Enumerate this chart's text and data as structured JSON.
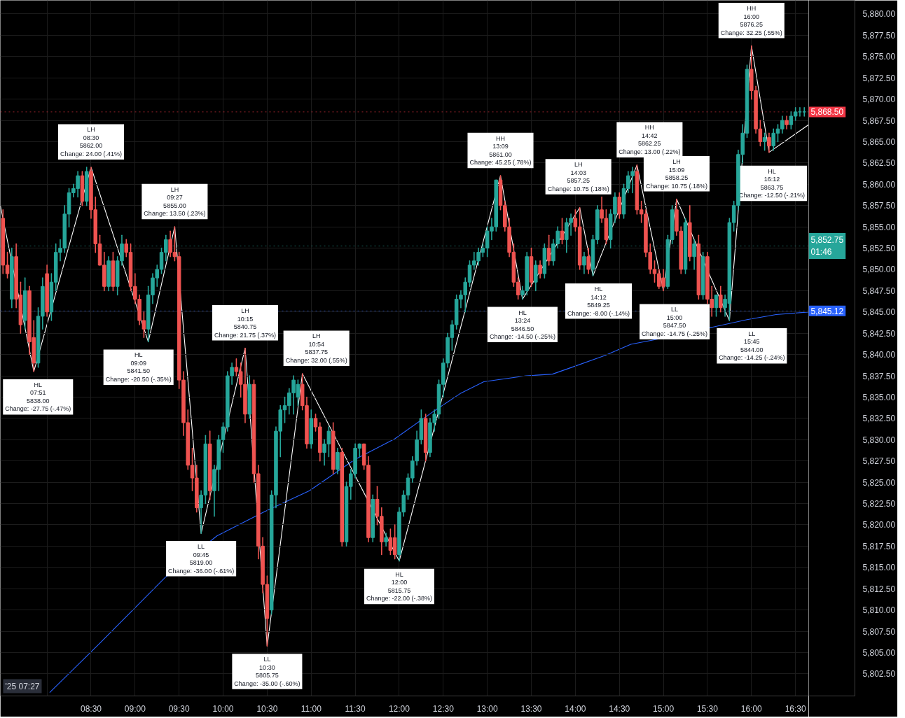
{
  "chart_data": {
    "type": "candlestick",
    "grid": true,
    "xlim": [
      7.47,
      16.65
    ],
    "ylim": [
      5799.9,
      5881.6
    ],
    "xticks": [
      {
        "value": 8,
        "label": null
      },
      {
        "value": 8.5,
        "label": "08:30"
      },
      {
        "value": 9,
        "label": "09:00"
      },
      {
        "value": 9.5,
        "label": "09:30"
      },
      {
        "value": 10,
        "label": "10:00"
      },
      {
        "value": 10.5,
        "label": "10:30"
      },
      {
        "value": 11,
        "label": "11:00"
      },
      {
        "value": 11.5,
        "label": "11:30"
      },
      {
        "value": 12,
        "label": "12:00"
      },
      {
        "value": 12.5,
        "label": "12:30"
      },
      {
        "value": 13,
        "label": "13:00"
      },
      {
        "value": 13.5,
        "label": "13:30"
      },
      {
        "value": 14,
        "label": "14:00"
      },
      {
        "value": 14.5,
        "label": "14:30"
      },
      {
        "value": 15,
        "label": "15:00"
      },
      {
        "value": 15.5,
        "label": "15:30"
      },
      {
        "value": 16,
        "label": "16:00"
      },
      {
        "value": 16.5,
        "label": "16:30"
      }
    ],
    "yticks": [
      {
        "value": 5802.5,
        "label": "5,802.50"
      },
      {
        "value": 5805,
        "label": "5,805.00"
      },
      {
        "value": 5807.5,
        "label": "5,807.50"
      },
      {
        "value": 5810,
        "label": "5,810.00"
      },
      {
        "value": 5812.5,
        "label": "5,812.50"
      },
      {
        "value": 5815,
        "label": "5,815.00"
      },
      {
        "value": 5817.5,
        "label": "5,817.50"
      },
      {
        "value": 5820,
        "label": "5,820.00"
      },
      {
        "value": 5822.5,
        "label": "5,822.50"
      },
      {
        "value": 5825,
        "label": "5,825.00"
      },
      {
        "value": 5827.5,
        "label": "5,827.50"
      },
      {
        "value": 5830,
        "label": "5,830.00"
      },
      {
        "value": 5832.5,
        "label": "5,832.50"
      },
      {
        "value": 5835,
        "label": "5,835.00"
      },
      {
        "value": 5837.5,
        "label": "5,837.50"
      },
      {
        "value": 5840,
        "label": "5,840.00"
      },
      {
        "value": 5842.5,
        "label": "5,842.50"
      },
      {
        "value": 5845,
        "label": "5,845.00"
      },
      {
        "value": 5847.5,
        "label": "5,847.50"
      },
      {
        "value": 5850,
        "label": "5,850.00"
      },
      {
        "value": 5852.5,
        "label": "5,852.50"
      },
      {
        "value": 5855,
        "label": "5,855.00"
      },
      {
        "value": 5857.5,
        "label": "5,857.50"
      },
      {
        "value": 5860,
        "label": "5,860.00"
      },
      {
        "value": 5862.5,
        "label": "5,862.50"
      },
      {
        "value": 5865,
        "label": "5,865.00"
      },
      {
        "value": 5867.5,
        "label": "5,867.50"
      },
      {
        "value": 5870,
        "label": "5,870.00"
      },
      {
        "value": 5872.5,
        "label": "5,872.50"
      },
      {
        "value": 5875,
        "label": "5,875.00"
      },
      {
        "value": 5877.5,
        "label": "5,877.50"
      },
      {
        "value": 5880,
        "label": "5,880.00"
      }
    ],
    "x": [
      7.5,
      7.55,
      7.6,
      7.65,
      7.7,
      7.75,
      7.8,
      7.85,
      7.9,
      7.95,
      8.0,
      8.05,
      8.1,
      8.15,
      8.2,
      8.25,
      8.3,
      8.35,
      8.4,
      8.45,
      8.5,
      8.55,
      8.6,
      8.65,
      8.7,
      8.75,
      8.8,
      8.85,
      8.9,
      8.95,
      9.0,
      9.05,
      9.1,
      9.15,
      9.2,
      9.25,
      9.3,
      9.35,
      9.4,
      9.45,
      9.5,
      9.55,
      9.6,
      9.65,
      9.7,
      9.75,
      9.8,
      9.85,
      9.9,
      9.95,
      10.0,
      10.05,
      10.1,
      10.15,
      10.2,
      10.25,
      10.3,
      10.35,
      10.4,
      10.45,
      10.5,
      10.55,
      10.6,
      10.65,
      10.7,
      10.75,
      10.8,
      10.85,
      10.9,
      10.95,
      11.0,
      11.05,
      11.1,
      11.15,
      11.2,
      11.25,
      11.3,
      11.35,
      11.4,
      11.45,
      11.5,
      11.55,
      11.6,
      11.65,
      11.7,
      11.75,
      11.8,
      11.85,
      11.9,
      11.95,
      12.0,
      12.05,
      12.1,
      12.15,
      12.2,
      12.25,
      12.3,
      12.35,
      12.4,
      12.45,
      12.5,
      12.55,
      12.6,
      12.65,
      12.7,
      12.75,
      12.8,
      12.85,
      12.9,
      12.95,
      13.0,
      13.05,
      13.1,
      13.15,
      13.2,
      13.25,
      13.3,
      13.35,
      13.4,
      13.45,
      13.5,
      13.55,
      13.6,
      13.65,
      13.7,
      13.75,
      13.8,
      13.85,
      13.9,
      13.95,
      14.0,
      14.05,
      14.1,
      14.15,
      14.2,
      14.25,
      14.3,
      14.35,
      14.4,
      14.45,
      14.5,
      14.55,
      14.6,
      14.65,
      14.7,
      14.75,
      14.8,
      14.85,
      14.9,
      14.95,
      15.0,
      15.05,
      15.1,
      15.15,
      15.2,
      15.25,
      15.3,
      15.35,
      15.4,
      15.45,
      15.5,
      15.55,
      15.6,
      15.65,
      15.7,
      15.75,
      15.8,
      15.85,
      15.9,
      15.95,
      16.0,
      16.05,
      16.1,
      16.15,
      16.2,
      16.25,
      16.3,
      16.35,
      16.4,
      16.45,
      16.5,
      16.55,
      16.6
    ],
    "ohlc": [
      [
        5856,
        5857,
        5849.5,
        5850.5
      ],
      [
        5850.5,
        5852,
        5849,
        5849.5
      ],
      [
        5846.5,
        5852.5,
        5845.5,
        5851.5
      ],
      [
        5851.5,
        5853,
        5845.5,
        5846.5
      ],
      [
        5847,
        5848.5,
        5842.5,
        5843.5
      ],
      [
        5844,
        5849,
        5843,
        5847.5
      ],
      [
        5847.5,
        5848,
        5840,
        5841.5
      ],
      [
        5842,
        5844,
        5838,
        5839
      ],
      [
        5839,
        5845.5,
        5838.5,
        5844.5
      ],
      [
        5844.5,
        5849,
        5843,
        5848
      ],
      [
        5849.5,
        5850.5,
        5844.5,
        5845
      ],
      [
        5845,
        5849.5,
        5844,
        5848.5
      ],
      [
        5848.5,
        5853,
        5847.5,
        5852
      ],
      [
        5852,
        5853.5,
        5851,
        5852.5
      ],
      [
        5852.5,
        5857.5,
        5852,
        5856.5
      ],
      [
        5856.5,
        5859.5,
        5855,
        5859
      ],
      [
        5859,
        5860,
        5858.5,
        5859.5
      ],
      [
        5859.5,
        5861.5,
        5858.5,
        5861
      ],
      [
        5861,
        5861.5,
        5857.5,
        5858
      ],
      [
        5858,
        5862,
        5857.5,
        5861.5
      ],
      [
        5861.5,
        5862,
        5856,
        5857
      ],
      [
        5857,
        5858.5,
        5852,
        5853
      ],
      [
        5853,
        5854,
        5850.5,
        5850.5
      ],
      [
        5850.5,
        5852,
        5847.5,
        5848
      ],
      [
        5848,
        5851.5,
        5847.5,
        5851
      ],
      [
        5851,
        5852,
        5847.5,
        5848
      ],
      [
        5848,
        5851.5,
        5847,
        5851
      ],
      [
        5851,
        5854,
        5850.5,
        5853
      ],
      [
        5853,
        5853.5,
        5851.5,
        5852
      ],
      [
        5852,
        5853,
        5847.5,
        5848
      ],
      [
        5848,
        5849.5,
        5846,
        5846.5
      ],
      [
        5846.5,
        5847,
        5843.5,
        5844
      ],
      [
        5844,
        5845,
        5842,
        5843
      ],
      [
        5843,
        5848,
        5841.5,
        5847
      ],
      [
        5847,
        5849.5,
        5846,
        5849
      ],
      [
        5849,
        5850.5,
        5848,
        5850
      ],
      [
        5850,
        5852.5,
        5849.5,
        5852
      ],
      [
        5852,
        5854,
        5851,
        5853.5
      ],
      [
        5853.5,
        5854.5,
        5851.5,
        5852
      ],
      [
        5852,
        5855,
        5851,
        5851.5
      ],
      [
        5851.5,
        5852,
        5836,
        5837
      ],
      [
        5837,
        5838,
        5830.5,
        5832
      ],
      [
        5832,
        5833.5,
        5826.5,
        5827
      ],
      [
        5827,
        5829,
        5824,
        5825.5
      ],
      [
        5825.5,
        5827,
        5821.5,
        5822
      ],
      [
        5822,
        5824,
        5819,
        5823.5
      ],
      [
        5823.5,
        5830.5,
        5822.5,
        5829.5
      ],
      [
        5829.5,
        5831,
        5823,
        5824
      ],
      [
        5824,
        5827,
        5821,
        5826.5
      ],
      [
        5826.5,
        5830.5,
        5824,
        5830
      ],
      [
        5830,
        5832,
        5828.5,
        5831.5
      ],
      [
        5831.5,
        5838,
        5831,
        5837.5
      ],
      [
        5837.5,
        5839,
        5836.5,
        5838.5
      ],
      [
        5838.5,
        5839.5,
        5837.5,
        5838
      ],
      [
        5838,
        5839,
        5835,
        5836.5
      ],
      [
        5836.5,
        5840.75,
        5832,
        5833
      ],
      [
        5833,
        5837.5,
        5832.5,
        5836.5
      ],
      [
        5836.5,
        5837,
        5825,
        5826
      ],
      [
        5826,
        5827,
        5816,
        5817.5
      ],
      [
        5817.5,
        5818.5,
        5812,
        5813
      ],
      [
        5813,
        5814,
        5805.75,
        5809
      ],
      [
        5810,
        5824,
        5809.5,
        5823.5
      ],
      [
        5823.5,
        5831.5,
        5822,
        5831
      ],
      [
        5831,
        5834,
        5828,
        5833.5
      ],
      [
        5833.5,
        5835,
        5832,
        5834
      ],
      [
        5834,
        5836,
        5833,
        5835.5
      ],
      [
        5835.5,
        5837.5,
        5833,
        5837
      ],
      [
        5835,
        5837,
        5834,
        5836.5
      ],
      [
        5836.5,
        5837.75,
        5833.5,
        5834
      ],
      [
        5834,
        5835,
        5829,
        5829.5
      ],
      [
        5829.5,
        5833.5,
        5829,
        5832.5
      ],
      [
        5832.5,
        5833,
        5831,
        5831.5
      ],
      [
        5831.5,
        5832,
        5827.5,
        5828.5
      ],
      [
        5828.5,
        5830,
        5827,
        5829.5
      ],
      [
        5829.5,
        5831.5,
        5828,
        5831
      ],
      [
        5831,
        5832,
        5826,
        5826.5
      ],
      [
        5826.5,
        5829,
        5826,
        5828.5
      ],
      [
        5828.5,
        5829,
        5817.5,
        5818
      ],
      [
        5818,
        5825,
        5817.5,
        5824.5
      ],
      [
        5824.5,
        5826.5,
        5823,
        5826
      ],
      [
        5826,
        5829.5,
        5825.5,
        5829
      ],
      [
        5829,
        5829.5,
        5828,
        5829.5
      ],
      [
        5829.5,
        5829.5,
        5826.5,
        5827
      ],
      [
        5827,
        5828,
        5818,
        5818.5
      ],
      [
        5818.5,
        5823.5,
        5818,
        5823
      ],
      [
        5823,
        5824.5,
        5820,
        5821
      ],
      [
        5821,
        5822,
        5816.5,
        5818
      ],
      [
        5818,
        5819,
        5817.5,
        5818.5
      ],
      [
        5818.5,
        5819.5,
        5816.5,
        5817
      ],
      [
        5818.5,
        5820,
        5816,
        5816.5
      ],
      [
        5816.5,
        5822,
        5815.75,
        5821.5
      ],
      [
        5821.5,
        5824,
        5821,
        5823.5
      ],
      [
        5823.5,
        5826,
        5823,
        5825.5
      ],
      [
        5825.5,
        5828,
        5825,
        5827.5
      ],
      [
        5827.5,
        5831,
        5827,
        5830
      ],
      [
        5830,
        5833.5,
        5829.5,
        5832.5
      ],
      [
        5832.5,
        5833,
        5827.5,
        5828.5
      ],
      [
        5828.5,
        5832.5,
        5828,
        5832
      ],
      [
        5832,
        5833.5,
        5831,
        5833
      ],
      [
        5833,
        5837,
        5832.5,
        5836.5
      ],
      [
        5836.5,
        5839.5,
        5835,
        5839
      ],
      [
        5839,
        5842.5,
        5838.5,
        5842
      ],
      [
        5842,
        5844,
        5840.5,
        5843.5
      ],
      [
        5843.5,
        5847,
        5843,
        5846.5
      ],
      [
        5846.5,
        5847.5,
        5845.5,
        5847
      ],
      [
        5847,
        5849,
        5845,
        5848.5
      ],
      [
        5848.5,
        5851,
        5848,
        5850.5
      ],
      [
        5850.5,
        5852,
        5850,
        5851
      ],
      [
        5851,
        5852.5,
        5850.5,
        5852
      ],
      [
        5852,
        5853,
        5851.5,
        5852.5
      ],
      [
        5852.5,
        5855,
        5851.5,
        5854.5
      ],
      [
        5854.5,
        5856,
        5853.5,
        5855
      ],
      [
        5855,
        5860.5,
        5854.5,
        5860.5
      ],
      [
        5860.5,
        5861,
        5857,
        5857.5
      ],
      [
        5857.5,
        5858,
        5854.5,
        5855
      ],
      [
        5855,
        5856,
        5851.5,
        5852
      ],
      [
        5852,
        5853,
        5848,
        5848.5
      ],
      [
        5848.5,
        5849,
        5846.5,
        5847
      ],
      [
        5847,
        5848,
        5846.5,
        5847.5
      ],
      [
        5847.5,
        5852,
        5847,
        5851.5
      ],
      [
        5851.5,
        5852.5,
        5848,
        5848.5
      ],
      [
        5848.5,
        5851,
        5847.5,
        5850.5
      ],
      [
        5850.5,
        5851,
        5849,
        5849.5
      ],
      [
        5849.5,
        5853,
        5849,
        5852.5
      ],
      [
        5852.5,
        5854,
        5850.5,
        5851
      ],
      [
        5851,
        5853.5,
        5850.5,
        5853
      ],
      [
        5853,
        5855,
        5852.5,
        5854.5
      ],
      [
        5854.5,
        5856,
        5853,
        5853.5
      ],
      [
        5853.5,
        5856,
        5852,
        5855.5
      ],
      [
        5855.5,
        5856.5,
        5854,
        5856
      ],
      [
        5856,
        5857,
        5854.5,
        5855
      ],
      [
        5855,
        5857.25,
        5850,
        5850.5
      ],
      [
        5850.5,
        5852,
        5849.5,
        5851.5
      ],
      [
        5851.5,
        5852.5,
        5849.5,
        5850
      ],
      [
        5850,
        5854,
        5849.25,
        5853.5
      ],
      [
        5853.5,
        5857.5,
        5853,
        5857
      ],
      [
        5857,
        5858.5,
        5855.5,
        5856
      ],
      [
        5856,
        5857,
        5853,
        5853.5
      ],
      [
        5853.5,
        5857,
        5852.5,
        5856.5
      ],
      [
        5856.5,
        5859,
        5855.5,
        5858.5
      ],
      [
        5858.5,
        5859,
        5856,
        5856.5
      ],
      [
        5856.5,
        5860,
        5856,
        5859.5
      ],
      [
        5859.5,
        5861.5,
        5859,
        5861
      ],
      [
        5861,
        5862,
        5859,
        5861.5
      ],
      [
        5861.5,
        5862.25,
        5856.5,
        5857
      ],
      [
        5857,
        5858,
        5855.5,
        5856.5
      ],
      [
        5856.5,
        5857,
        5851.5,
        5852
      ],
      [
        5852,
        5853,
        5849.5,
        5850
      ],
      [
        5850,
        5851,
        5848.5,
        5849.5
      ],
      [
        5849.5,
        5850,
        5847.75,
        5848
      ],
      [
        5849,
        5850,
        5847.5,
        5848
      ],
      [
        5848,
        5854,
        5847.75,
        5853.5
      ],
      [
        5853.5,
        5857.5,
        5853,
        5857
      ],
      [
        5857,
        5858.25,
        5854,
        5854.5
      ],
      [
        5854.5,
        5855,
        5849.5,
        5850
      ],
      [
        5850,
        5856,
        5849.5,
        5855.5
      ],
      [
        5855.5,
        5857.5,
        5851,
        5851.5
      ],
      [
        5851.5,
        5853.5,
        5850,
        5853
      ],
      [
        5853,
        5854,
        5846.5,
        5847
      ],
      [
        5847,
        5852,
        5846.5,
        5851.5
      ],
      [
        5851.5,
        5852,
        5846,
        5846.5
      ],
      [
        5846.5,
        5848,
        5844.5,
        5845.5
      ],
      [
        5845.5,
        5847,
        5844.5,
        5847
      ],
      [
        5847,
        5848,
        5845,
        5845.5
      ],
      [
        5845.5,
        5847,
        5844.5,
        5846.5
      ],
      [
        5846,
        5856,
        5844,
        5855.5
      ],
      [
        5855.5,
        5858,
        5854.5,
        5857.5
      ],
      [
        5857.5,
        5864,
        5857,
        5863.5
      ],
      [
        5863.5,
        5867,
        5862.5,
        5866
      ],
      [
        5866,
        5874,
        5865.5,
        5873.5
      ],
      [
        5873.5,
        5876.25,
        5870,
        5871
      ],
      [
        5871,
        5871.5,
        5866,
        5866.5
      ],
      [
        5866.5,
        5867.5,
        5864.5,
        5865
      ],
      [
        5865,
        5866,
        5864,
        5865.5
      ],
      [
        5865.5,
        5866,
        5863.75,
        5864.5
      ],
      [
        5864.5,
        5866.5,
        5864,
        5866
      ],
      [
        5866,
        5867,
        5865,
        5866.5
      ],
      [
        5866.5,
        5868,
        5866,
        5867.5
      ],
      [
        5867.5,
        5868,
        5866.5,
        5867
      ],
      [
        5867,
        5868.5,
        5866.5,
        5868
      ],
      [
        5868,
        5869,
        5867.5,
        5868.5
      ],
      [
        5868.5,
        5869,
        5868,
        5868.5
      ],
      [
        5868.5,
        5869,
        5868,
        5868.5
      ]
    ],
    "series": [
      {
        "type": "line",
        "color": "#2962ff",
        "x": [
          8.03,
          8.59,
          9.34,
          9.93,
          10.46,
          10.98,
          11.5,
          11.95,
          12.4,
          12.69,
          12.96,
          13.44,
          13.74,
          13.96,
          14.34,
          14.63,
          14.93,
          15.95,
          16.28,
          16.65
        ],
        "values": [
          5800.3,
          5806.0,
          5813.8,
          5818.7,
          5821.5,
          5824.0,
          5827.7,
          5830.1,
          5833.4,
          5835.4,
          5836.8,
          5837.5,
          5837.7,
          5838.5,
          5839.9,
          5841.2,
          5841.8,
          5844.1,
          5844.7,
          5845.0
        ]
      },
      {
        "type": "line",
        "color": "#ffffff",
        "x": [
          7.47,
          7.85,
          8.5,
          9.15,
          9.45,
          9.75,
          10.25,
          10.5,
          10.9,
          12.0,
          13.15,
          13.4,
          14.05,
          14.2,
          14.7,
          15.0,
          15.15,
          15.75,
          16.0,
          16.2,
          16.65
        ],
        "values": [
          5857.5,
          5838,
          5862,
          5841.5,
          5855,
          5819,
          5840.75,
          5805.75,
          5837.75,
          5815.75,
          5861,
          5846.5,
          5857.25,
          5849.25,
          5862.25,
          5847.5,
          5858.25,
          5844,
          5876.25,
          5863.75,
          5867
        ]
      }
    ],
    "ref_lines": [
      {
        "axis": "y",
        "value": 5868.5,
        "label": "5,868.50",
        "color": "#f23645",
        "line_style": "dotted"
      },
      {
        "axis": "y",
        "value": 5852.75,
        "label": "5,852.75\n01:46",
        "color": "#26a69a",
        "line_style": "dotted"
      },
      {
        "axis": "y",
        "value": 5845.12,
        "label": "5,845.12",
        "color": "#2962ff",
        "line_style": "dotted"
      }
    ],
    "annotations": [
      "'25 07:27",
      {
        "text": "HL\n07:51\n5838.00\nChange: -27.75 (-.47%)",
        "x": 7.85,
        "y": 5838
      },
      {
        "text": "LH\n08:30\n5862.00\nChange: 24.00 (.41%)",
        "x": 8.5,
        "y": 5862
      },
      {
        "text": "HL\n09:09\n5841.50\nChange: -20.50 (-.35%)",
        "x": 9.15,
        "y": 5841.5
      },
      {
        "text": "LH\n09:27\n5855.00\nChange: 13.50 (.23%)",
        "x": 9.45,
        "y": 5855
      },
      {
        "text": "LL\n09:45\n5819.00\nChange: -36.00 (-.61%)",
        "x": 9.75,
        "y": 5819
      },
      {
        "text": "LH\n10:15\n5840.75\nChange: 21.75 (.37%)",
        "x": 10.25,
        "y": 5840.75
      },
      {
        "text": "LL\n10:30\n5805.75\nChange: -35.00 (-.60%)",
        "x": 10.5,
        "y": 5805.75
      },
      {
        "text": "LH\n10:54\n5837.75\nChange: 32.00 (.55%)",
        "x": 10.9,
        "y": 5837.75
      },
      {
        "text": "HL\n12:00\n5815.75\nChange: -22.00 (-.38%)",
        "x": 12.0,
        "y": 5815.75
      },
      {
        "text": "HH\n13:09\n5861.00\nChange: 45.25 (.78%)",
        "x": 13.15,
        "y": 5861
      },
      {
        "text": "HL\n13:24\n5846.50\nChange: -14.50 (-.25%)",
        "x": 13.4,
        "y": 5846.5
      },
      {
        "text": "LH\n14:03\n5857.25\nChange: 10.75 (.18%)",
        "x": 14.05,
        "y": 5857.25
      },
      {
        "text": "HL\n14:12\n5849.25\nChange: -8.00 (-.14%)",
        "x": 14.2,
        "y": 5849.25
      },
      {
        "text": "HH\n14:42\n5862.25\nChange: 13.00 (.22%)",
        "x": 14.7,
        "y": 5862.25
      },
      {
        "text": "LL\n15:00\n5847.50\nChange: -14.75 (-.25%)",
        "x": 15.0,
        "y": 5847.5
      },
      {
        "text": "LH\n15:09\n5858.25\nChange: 10.75 (.18%)",
        "x": 15.15,
        "y": 5858.25
      },
      {
        "text": "LL\n15:45\n5844.00\nChange: -14.25 (-.24%)",
        "x": 15.75,
        "y": 5844
      },
      {
        "text": "HH\n16:00\n5876.25\nChange: 32.25 (.55%)",
        "x": 16.0,
        "y": 5876.25
      },
      {
        "text": "HL\n16:12\n5863.75\nChange: -12.50 (-.21%)",
        "x": 16.2,
        "y": 5863.75
      }
    ]
  }
}
